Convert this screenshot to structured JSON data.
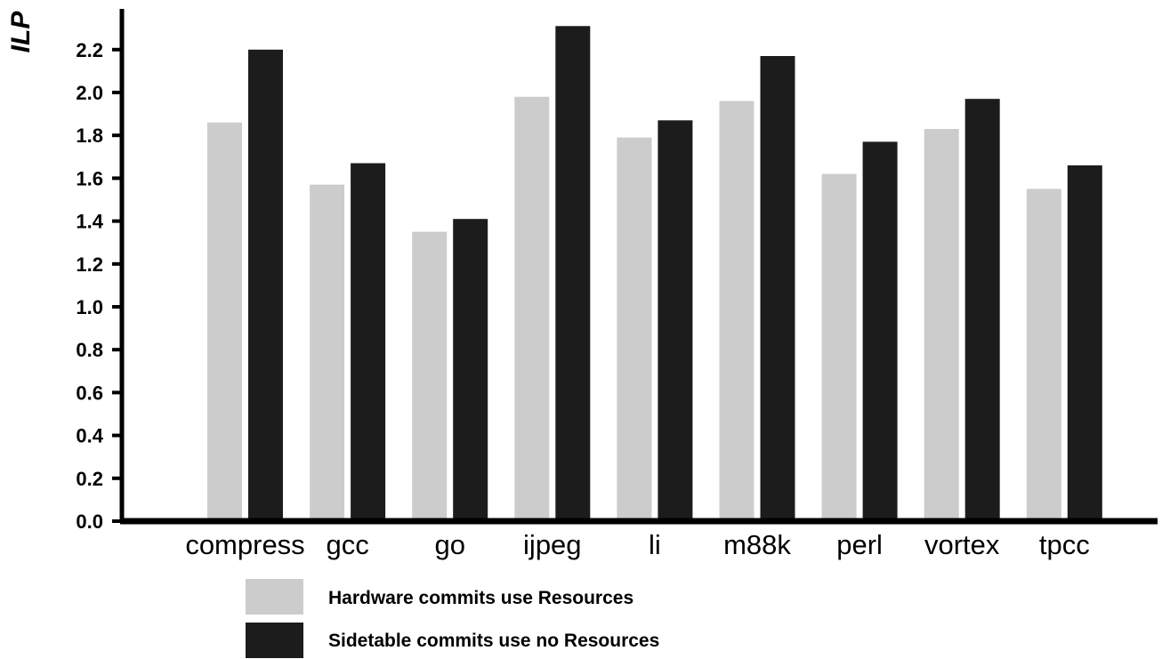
{
  "chart_data": {
    "type": "bar",
    "title": "",
    "xlabel": "",
    "ylabel": "ILP",
    "ylim": [
      0,
      2.3
    ],
    "yticks": [
      "0.0",
      "0.2",
      "0.4",
      "0.6",
      "0.8",
      "1.0",
      "1.2",
      "1.4",
      "1.6",
      "1.8",
      "2.0",
      "2.2"
    ],
    "categories": [
      "compress",
      "gcc",
      "go",
      "ijpeg",
      "li",
      "m88k",
      "perl",
      "vortex",
      "tpcc"
    ],
    "series": [
      {
        "name": "Hardware commits use Resources",
        "color": "#cccccc",
        "values": [
          1.86,
          1.57,
          1.35,
          1.98,
          1.79,
          1.96,
          1.62,
          1.83,
          1.55
        ]
      },
      {
        "name": "Sidetable commits use no Resources",
        "color": "#1c1c1c",
        "values": [
          2.2,
          1.67,
          1.41,
          2.31,
          1.87,
          2.17,
          1.77,
          1.97,
          1.66
        ]
      }
    ],
    "grid": false,
    "legend_position": "bottom"
  }
}
